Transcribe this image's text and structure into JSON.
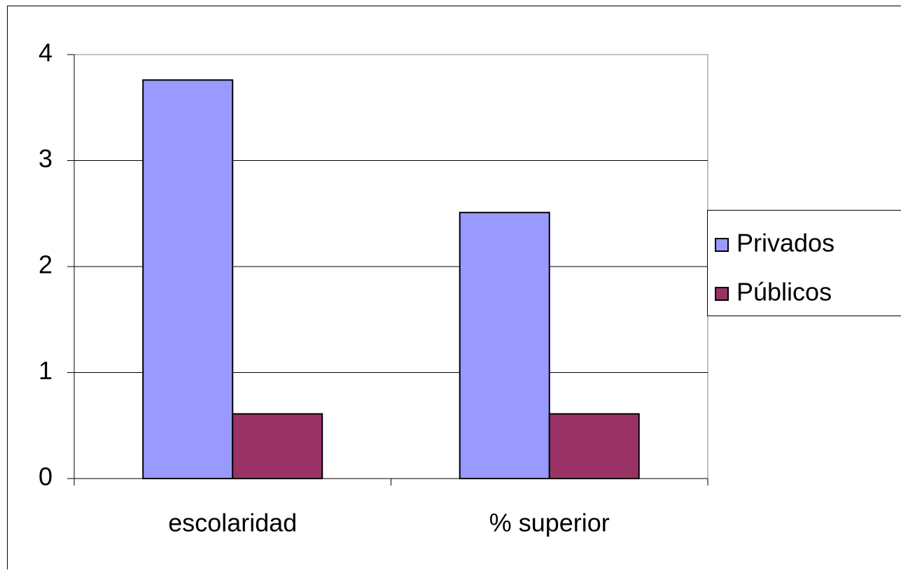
{
  "chart_data": {
    "type": "bar",
    "categories": [
      "escolaridad",
      "% superior"
    ],
    "series": [
      {
        "name": "Privados",
        "color": "#9999ff",
        "values": [
          3.76,
          2.51
        ]
      },
      {
        "name": "Públicos",
        "color": "#993366",
        "values": [
          0.61,
          0.61
        ]
      }
    ],
    "ylim": [
      0,
      4
    ],
    "yticks": [
      0,
      1,
      2,
      3,
      4
    ],
    "grid": true,
    "legend": "right"
  }
}
